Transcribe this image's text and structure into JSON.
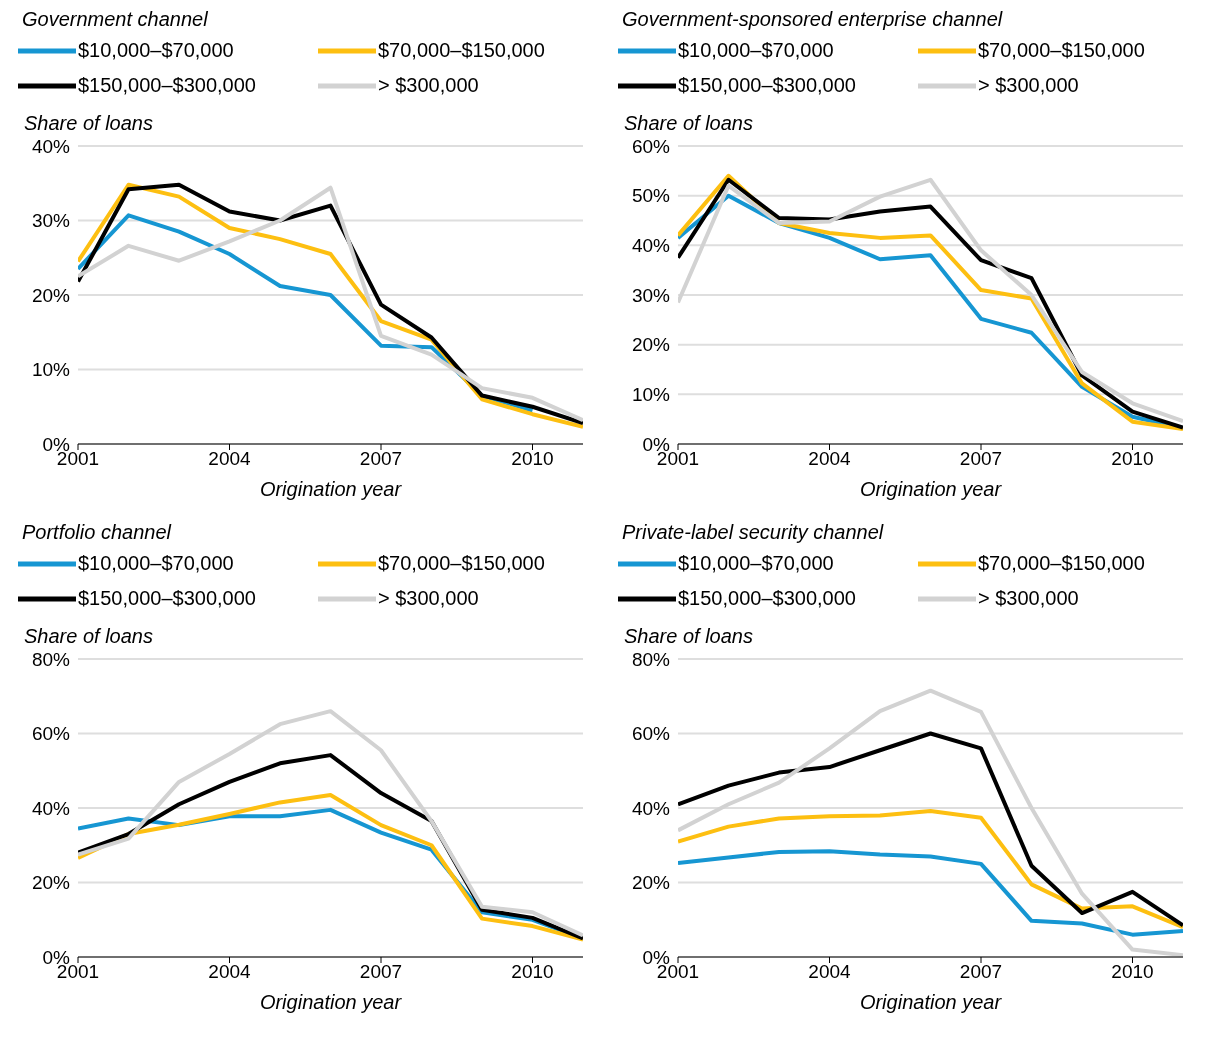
{
  "chart_data": [
    {
      "type": "line",
      "title": "Government channel",
      "ylabel": "Share of loans",
      "xlabel": "Origination year",
      "x": [
        2001,
        2002,
        2003,
        2004,
        2005,
        2006,
        2007,
        2008,
        2009,
        2010,
        2011
      ],
      "xlim": [
        2001,
        2011
      ],
      "xticks": [
        2001,
        2004,
        2007,
        2010
      ],
      "ylim": [
        0,
        40
      ],
      "yticks": [
        {
          "value": 0,
          "label": "0%"
        },
        {
          "value": 10,
          "label": "10%"
        },
        {
          "value": 20,
          "label": "20%"
        },
        {
          "value": 30,
          "label": "30%"
        },
        {
          "value": 40,
          "label": "40%"
        }
      ],
      "grid": "y",
      "legend": "top",
      "series": [
        {
          "name": "$10,000–$70,000",
          "color": "#1696d2",
          "values": [
            23.5,
            30.7,
            28.5,
            25.5,
            21.2,
            20,
            13.2,
            13,
            6.5,
            4.5,
            null
          ]
        },
        {
          "name": "$70,000–$150,000",
          "color": "#fdbf11",
          "values": [
            24.5,
            34.8,
            33.2,
            29,
            27.5,
            25.5,
            16.5,
            14,
            6,
            4,
            2.3
          ]
        },
        {
          "name": "$150,000–$300,000",
          "color": "#000000",
          "values": [
            21.8,
            34.2,
            34.8,
            31.2,
            30,
            32,
            18.7,
            14.3,
            6.5,
            5,
            2.8
          ]
        },
        {
          "name": "> $300,000",
          "color": "#d2d2d2",
          "values": [
            22.5,
            26.6,
            24.6,
            27.2,
            30,
            34.4,
            14.5,
            12,
            7.5,
            6.2,
            3.2
          ]
        }
      ]
    },
    {
      "type": "line",
      "title": "Government-sponsored enterprise channel",
      "ylabel": "Share of loans",
      "xlabel": "Origination year",
      "x": [
        2001,
        2002,
        2003,
        2004,
        2005,
        2006,
        2007,
        2008,
        2009,
        2010,
        2011
      ],
      "xlim": [
        2001,
        2011
      ],
      "xticks": [
        2001,
        2004,
        2007,
        2010
      ],
      "ylim": [
        0,
        60
      ],
      "yticks": [
        {
          "value": 0,
          "label": "0%"
        },
        {
          "value": 10,
          "label": "10%"
        },
        {
          "value": 20,
          "label": "20%"
        },
        {
          "value": 30,
          "label": "30%"
        },
        {
          "value": 40,
          "label": "40%"
        },
        {
          "value": 50,
          "label": "50%"
        },
        {
          "value": 60,
          "label": "60%"
        }
      ],
      "grid": "y",
      "legend": "top",
      "series": [
        {
          "name": "$10,000–$70,000",
          "color": "#1696d2",
          "values": [
            41.5,
            50,
            44.5,
            41.5,
            37.2,
            38,
            25.2,
            22.4,
            11.5,
            5.5,
            3.2
          ]
        },
        {
          "name": "$70,000–$150,000",
          "color": "#fdbf11",
          "values": [
            42,
            54,
            44.5,
            42.5,
            41.5,
            42,
            31,
            29.3,
            12.2,
            4.5,
            3
          ]
        },
        {
          "name": "$150,000–$300,000",
          "color": "#000000",
          "values": [
            37.5,
            53.2,
            45.5,
            45.2,
            46.8,
            47.8,
            37,
            33.4,
            13.8,
            6.5,
            3.3
          ]
        },
        {
          "name": "> $300,000",
          "color": "#d2d2d2",
          "values": [
            28.5,
            52,
            44.5,
            44.8,
            49.8,
            53.2,
            39,
            30,
            14.5,
            8.2,
            4.6
          ]
        }
      ]
    },
    {
      "type": "line",
      "title": "Portfolio channel",
      "ylabel": "Share of loans",
      "xlabel": "Origination year",
      "x": [
        2001,
        2002,
        2003,
        2004,
        2005,
        2006,
        2007,
        2008,
        2009,
        2010,
        2011
      ],
      "xlim": [
        2001,
        2011
      ],
      "xticks": [
        2001,
        2004,
        2007,
        2010
      ],
      "ylim": [
        0,
        80
      ],
      "yticks": [
        {
          "value": 0,
          "label": "0%"
        },
        {
          "value": 20,
          "label": "20%"
        },
        {
          "value": 40,
          "label": "40%"
        },
        {
          "value": 60,
          "label": "60%"
        },
        {
          "value": 80,
          "label": "80%"
        }
      ],
      "grid": "y",
      "legend": "top",
      "series": [
        {
          "name": "$10,000–$70,000",
          "color": "#1696d2",
          "values": [
            34.5,
            37.2,
            35.4,
            37.8,
            37.8,
            39.5,
            33.4,
            28.8,
            12,
            10,
            5
          ]
        },
        {
          "name": "$70,000–$150,000",
          "color": "#fdbf11",
          "values": [
            26.6,
            33,
            35.5,
            38.4,
            41.5,
            43.5,
            35.4,
            30,
            10.3,
            8.3,
            4.7
          ]
        },
        {
          "name": "$150,000–$300,000",
          "color": "#000000",
          "values": [
            28,
            33,
            41,
            47,
            52,
            54.2,
            44,
            36.5,
            12.7,
            10.5,
            5
          ]
        },
        {
          "name": "> $300,000",
          "color": "#d2d2d2",
          "values": [
            27.5,
            31.8,
            47,
            54.5,
            62.5,
            66,
            55.5,
            36.5,
            13.5,
            12,
            5.8
          ]
        }
      ]
    },
    {
      "type": "line",
      "title": "Private-label security channel",
      "ylabel": "Share of loans",
      "xlabel": "Origination year",
      "x": [
        2001,
        2002,
        2003,
        2004,
        2005,
        2006,
        2007,
        2008,
        2009,
        2010,
        2011
      ],
      "xlim": [
        2001,
        2011
      ],
      "xticks": [
        2001,
        2004,
        2007,
        2010
      ],
      "ylim": [
        0,
        80
      ],
      "yticks": [
        {
          "value": 0,
          "label": "0%"
        },
        {
          "value": 20,
          "label": "20%"
        },
        {
          "value": 40,
          "label": "40%"
        },
        {
          "value": 60,
          "label": "60%"
        },
        {
          "value": 80,
          "label": "80%"
        }
      ],
      "grid": "y",
      "legend": "top",
      "series": [
        {
          "name": "$10,000–$70,000",
          "color": "#1696d2",
          "values": [
            25.2,
            26.7,
            28.2,
            28.4,
            27.5,
            27,
            25,
            9.7,
            9,
            6,
            7
          ]
        },
        {
          "name": "$70,000–$150,000",
          "color": "#fdbf11",
          "values": [
            31,
            35,
            37.2,
            37.8,
            38,
            39.2,
            37.4,
            19.5,
            13,
            13.6,
            8
          ]
        },
        {
          "name": "$150,000–$300,000",
          "color": "#000000",
          "values": [
            41,
            46,
            49.5,
            51,
            55.5,
            60,
            56,
            24.5,
            11.8,
            17.5,
            8.5
          ]
        },
        {
          "name": "> $300,000",
          "color": "#d2d2d2",
          "values": [
            34,
            41,
            46.8,
            56,
            66,
            71.5,
            65.8,
            40,
            17,
            2,
            0.5
          ]
        }
      ]
    }
  ]
}
